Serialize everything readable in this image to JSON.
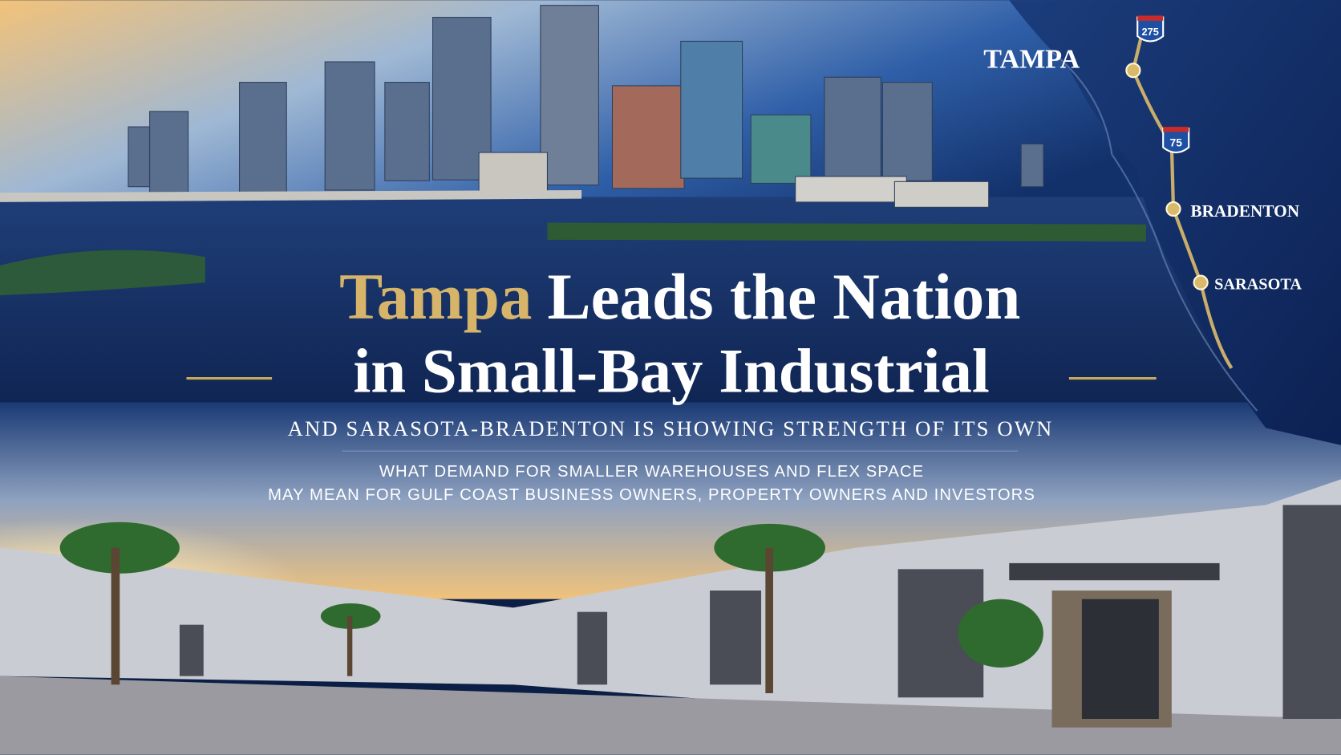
{
  "headline": {
    "highlight": "Tampa",
    "line1_rest": "Leads the Nation",
    "line2": "in Small-Bay Industrial"
  },
  "subtitle": "AND SARASOTA-BRADENTON IS SHOWING STRENGTH OF ITS OWN",
  "description": [
    "WHAT DEMAND FOR SMALLER WAREHOUSES AND FLEX SPACE",
    "MAY MEAN FOR GULF COAST BUSINESS OWNERS, PROPERTY OWNERS AND INVESTORS"
  ],
  "map": {
    "cities": [
      "TAMPA",
      "BRADENTON",
      "SARASOTA"
    ],
    "highways": [
      "275",
      "75"
    ]
  }
}
